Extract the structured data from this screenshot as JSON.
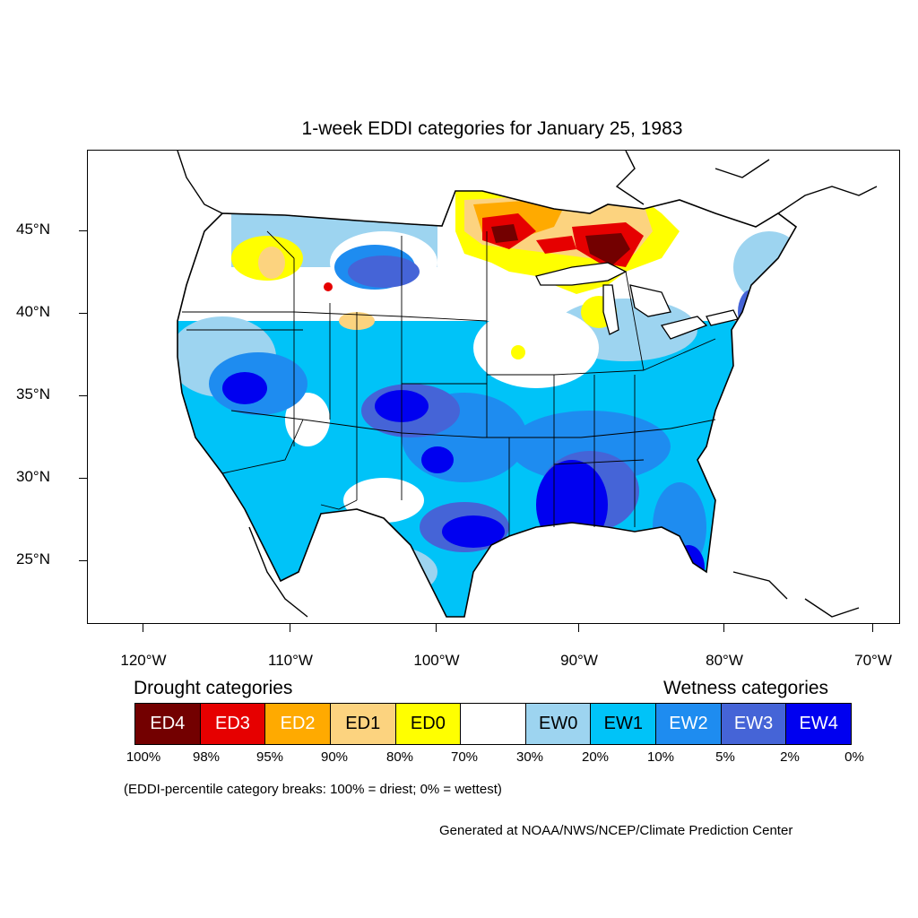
{
  "title": "1-week EDDI categories for January 25, 1983",
  "lat_labels": [
    "45°N",
    "40°N",
    "35°N",
    "30°N",
    "25°N"
  ],
  "lon_labels": [
    "120°W",
    "110°W",
    "100°W",
    "90°W",
    "80°W",
    "70°W"
  ],
  "legend": {
    "drought_heading": "Drought categories",
    "wetness_heading": "Wetness categories",
    "categories": [
      {
        "label": "ED4",
        "color": "#730000",
        "text_color": "#ffffff"
      },
      {
        "label": "ED3",
        "color": "#e60000",
        "text_color": "#ffffff"
      },
      {
        "label": "ED2",
        "color": "#ffaa00",
        "text_color": "#ffffff"
      },
      {
        "label": "ED1",
        "color": "#fcd37f",
        "text_color": "#000000"
      },
      {
        "label": "ED0",
        "color": "#ffff00",
        "text_color": "#000000"
      },
      {
        "label": "",
        "color": "#ffffff",
        "text_color": "#000000"
      },
      {
        "label": "EW0",
        "color": "#9dd4f0",
        "text_color": "#000000"
      },
      {
        "label": "EW1",
        "color": "#00c3f8",
        "text_color": "#000000"
      },
      {
        "label": "EW2",
        "color": "#1e8cf0",
        "text_color": "#ffffff"
      },
      {
        "label": "EW3",
        "color": "#4564d7",
        "text_color": "#ffffff"
      },
      {
        "label": "EW4",
        "color": "#0000f0",
        "text_color": "#ffffff"
      }
    ],
    "breaks": [
      "100%",
      "98%",
      "95%",
      "90%",
      "80%",
      "70%",
      "30%",
      "20%",
      "10%",
      "5%",
      "2%",
      "0%"
    ],
    "note": "(EDDI-percentile category breaks: 100% = driest; 0% = wettest)"
  },
  "credit": "Generated at NOAA/NWS/NCEP/Climate Prediction Center"
}
